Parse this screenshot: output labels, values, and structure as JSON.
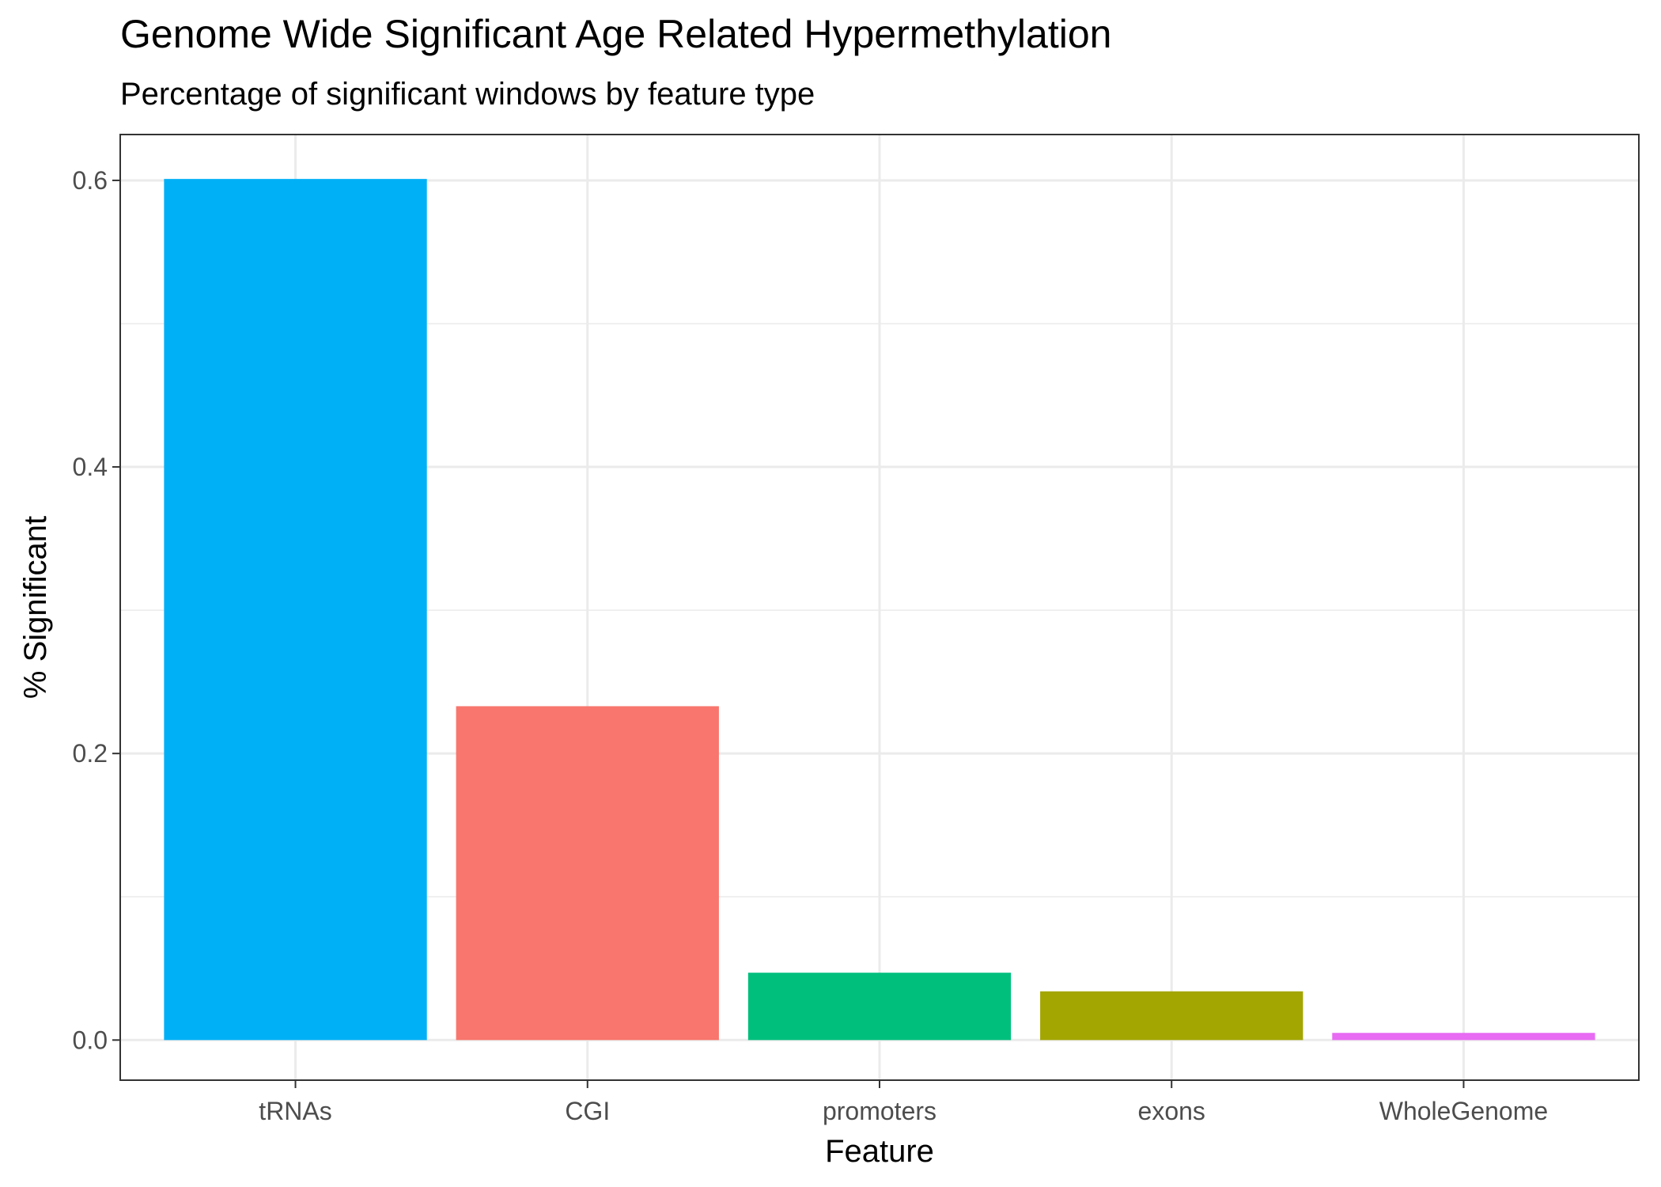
{
  "chart_data": {
    "type": "bar",
    "title": "Genome Wide Significant Age Related Hypermethylation",
    "subtitle": "Percentage of significant windows by feature type",
    "xlabel": "Feature",
    "ylabel": "% Significant",
    "categories": [
      "tRNAs",
      "CGI",
      "promoters",
      "exons",
      "WholeGenome"
    ],
    "values": [
      0.601,
      0.233,
      0.047,
      0.034,
      0.005
    ],
    "colors": [
      "#00B0F6",
      "#F8766D",
      "#00BF7D",
      "#A3A500",
      "#E76BF3"
    ],
    "ylim": [
      -0.028,
      0.632
    ],
    "yticks": [
      0.0,
      0.2,
      0.4,
      0.6
    ],
    "ytick_labels": [
      "0.0",
      "0.2",
      "0.4",
      "0.6"
    ],
    "grid": true,
    "legend": "none"
  }
}
